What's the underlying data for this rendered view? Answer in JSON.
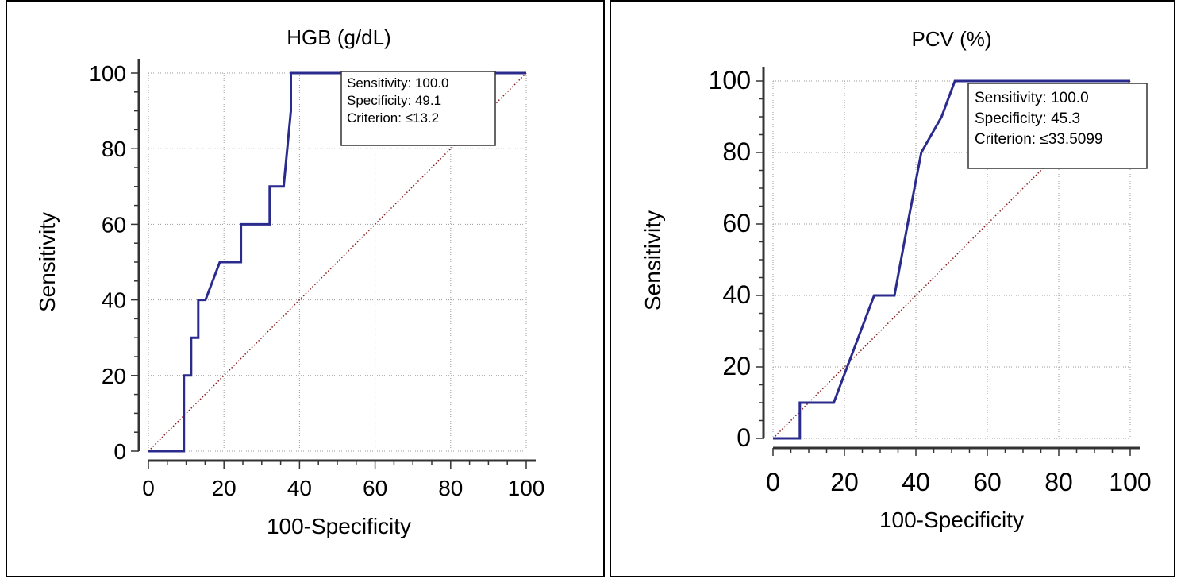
{
  "chart_data": [
    {
      "type": "line",
      "title": "HGB (g/dL)",
      "xlabel": "100-Specificity",
      "ylabel": "Sensitivity",
      "xlim": [
        0,
        100
      ],
      "ylim": [
        0,
        100
      ],
      "xticks": [
        0,
        20,
        40,
        60,
        80,
        100
      ],
      "yticks": [
        0,
        20,
        40,
        60,
        80,
        100
      ],
      "grid": true,
      "series": [
        {
          "color": "#2b2b8e",
          "x": [
            0,
            9.4,
            9.4,
            11.3,
            11.3,
            13.2,
            13.2,
            15.1,
            15.1,
            18.9,
            18.9,
            24.5,
            24.5,
            32.1,
            32.1,
            35.8,
            35.8,
            37.7,
            37.7,
            100
          ],
          "y": [
            0,
            0,
            20,
            20,
            30,
            30,
            40,
            40,
            40,
            50,
            50,
            50,
            60,
            60,
            70,
            70,
            70,
            90,
            100,
            100
          ]
        },
        {
          "color": "#8b1a1a",
          "style": "dotted",
          "x": [
            0,
            100
          ],
          "y": [
            0,
            100
          ]
        }
      ],
      "annotation": {
        "lines": [
          "Sensitivity: 100.0",
          "Specificity: 49.1",
          "Criterion: ≤13.2"
        ],
        "placement": "top-right"
      }
    },
    {
      "type": "line",
      "title": "PCV (%)",
      "xlabel": "100-Specificity",
      "ylabel": "Sensitivity",
      "xlim": [
        0,
        100
      ],
      "ylim": [
        0,
        100
      ],
      "xticks": [
        0,
        20,
        40,
        60,
        80,
        100
      ],
      "yticks": [
        0,
        20,
        40,
        60,
        80,
        100
      ],
      "grid": true,
      "series": [
        {
          "color": "#2b2b8e",
          "x": [
            0,
            7.5,
            7.5,
            11.3,
            17.0,
            28.3,
            34.0,
            37.7,
            41.5,
            47.2,
            50.9,
            52.8,
            100
          ],
          "y": [
            0,
            0,
            10,
            10,
            10,
            40,
            40,
            60,
            80,
            90,
            100,
            100,
            100
          ]
        },
        {
          "color": "#8b1a1a",
          "style": "dotted",
          "x": [
            0,
            100
          ],
          "y": [
            0,
            100
          ]
        }
      ],
      "annotation": {
        "lines": [
          "Sensitivity: 100.0",
          "Specificity: 45.3",
          "Criterion: ≤33.5099"
        ],
        "placement": "top-right"
      }
    }
  ]
}
